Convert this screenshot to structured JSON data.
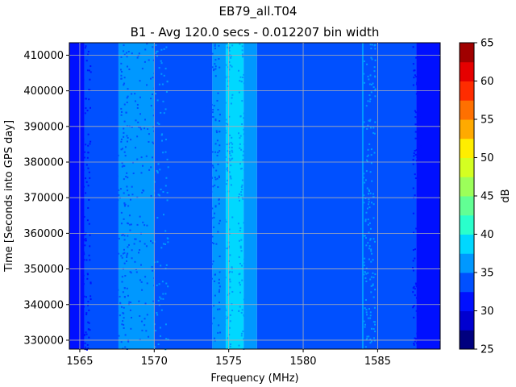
{
  "chart_data": {
    "type": "heatmap",
    "title": "EB79_all.T04",
    "subtitle": "B1 - Avg 120.0 secs - 0.012207 bin width",
    "xlabel": "Frequency (MHz)",
    "ylabel": "Time [Seconds into GPS day]",
    "xlim": [
      1564.3,
      1589.2
    ],
    "ylim": [
      327500,
      413500
    ],
    "x_ticks": [
      1565,
      1570,
      1575,
      1580,
      1585
    ],
    "y_ticks": [
      330000,
      340000,
      350000,
      360000,
      370000,
      380000,
      390000,
      400000,
      410000
    ],
    "grid": true,
    "colorbar": {
      "label": "dB",
      "min": 25,
      "max": 65,
      "step": 2.5,
      "ticks": [
        25,
        30,
        35,
        40,
        45,
        50,
        55,
        60,
        65
      ],
      "colors": [
        "#00007f",
        "#0000d0",
        "#0010ff",
        "#0050ff",
        "#0098ff",
        "#00d8ff",
        "#2affcc",
        "#62ff94",
        "#9cff5a",
        "#d4ff22",
        "#ffee00",
        "#ffaa00",
        "#ff7000",
        "#ff2c00",
        "#e50000",
        "#a00000"
      ]
    },
    "bands": [
      {
        "from": 1564.3,
        "to": 1565.3,
        "level_db": 31.2
      },
      {
        "from": 1565.3,
        "to": 1567.6,
        "level_db": 33.5
      },
      {
        "from": 1567.6,
        "to": 1570.0,
        "level_db": 36.0
      },
      {
        "from": 1570.0,
        "to": 1573.9,
        "level_db": 33.5
      },
      {
        "from": 1573.9,
        "to": 1574.8,
        "level_db": 36.5
      },
      {
        "from": 1574.8,
        "to": 1576.0,
        "level_db": 38.5
      },
      {
        "from": 1576.0,
        "to": 1576.9,
        "level_db": 36.5
      },
      {
        "from": 1576.9,
        "to": 1587.6,
        "level_db": 33.5
      },
      {
        "from": 1587.6,
        "to": 1589.2,
        "level_db": 31.2
      }
    ],
    "spur": {
      "freq": 1584.0,
      "level_db": 36.0
    }
  }
}
